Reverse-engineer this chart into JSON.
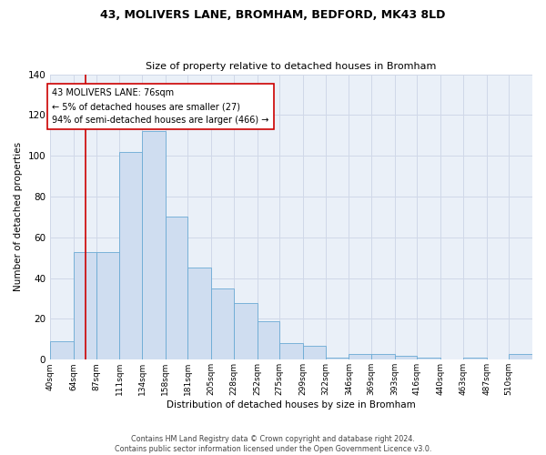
{
  "title": "43, MOLIVERS LANE, BROMHAM, BEDFORD, MK43 8LD",
  "subtitle": "Size of property relative to detached houses in Bromham",
  "xlabel": "Distribution of detached houses by size in Bromham",
  "ylabel": "Number of detached properties",
  "bar_color": "#cfddf0",
  "bar_edge_color": "#6aaad4",
  "grid_color": "#d0d8e8",
  "background_color": "#eaf0f8",
  "vline_x": 76,
  "vline_color": "#cc0000",
  "annotation_text": "43 MOLIVERS LANE: 76sqm\n← 5% of detached houses are smaller (27)\n94% of semi-detached houses are larger (466) →",
  "annotation_box_color": "#ffffff",
  "annotation_box_edge": "#cc0000",
  "categories": [
    "40sqm",
    "64sqm",
    "87sqm",
    "111sqm",
    "134sqm",
    "158sqm",
    "181sqm",
    "205sqm",
    "228sqm",
    "252sqm",
    "275sqm",
    "299sqm",
    "322sqm",
    "346sqm",
    "369sqm",
    "393sqm",
    "416sqm",
    "440sqm",
    "463sqm",
    "487sqm",
    "510sqm"
  ],
  "values": [
    9,
    53,
    53,
    102,
    112,
    70,
    45,
    35,
    28,
    19,
    8,
    7,
    1,
    3,
    3,
    2,
    1,
    0,
    1,
    0,
    3
  ],
  "bin_edges": [
    40,
    64,
    87,
    111,
    134,
    158,
    181,
    205,
    228,
    252,
    275,
    299,
    322,
    346,
    369,
    393,
    416,
    440,
    463,
    487,
    510,
    534
  ],
  "ylim": [
    0,
    140
  ],
  "yticks": [
    0,
    20,
    40,
    60,
    80,
    100,
    120,
    140
  ],
  "footer_line1": "Contains HM Land Registry data © Crown copyright and database right 2024.",
  "footer_line2": "Contains public sector information licensed under the Open Government Licence v3.0."
}
